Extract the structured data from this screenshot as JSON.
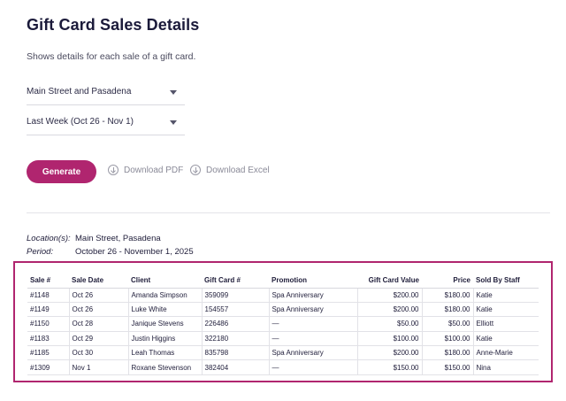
{
  "header": {
    "title": "Gift Card Sales Details",
    "subtitle": "Shows details for each sale of a gift card."
  },
  "filters": {
    "location_value": "Main Street and Pasadena",
    "period_value": "Last Week (Oct 26 - Nov 1)"
  },
  "actions": {
    "generate_label": "Generate",
    "download_pdf_label": "Download PDF",
    "download_excel_label": "Download Excel"
  },
  "report_meta": {
    "location_label": "Location(s):",
    "location_value": "Main Street, Pasadena",
    "period_label": "Period:",
    "period_value": "October 26 - November 1, 2025"
  },
  "table": {
    "columns": [
      "Sale #",
      "Sale Date",
      "Client",
      "Gift Card #",
      "Promotion",
      "Gift Card Value",
      "Price",
      "Sold By Staff"
    ],
    "rows": [
      [
        "#1148",
        "Oct 26",
        "Amanda Simpson",
        "359099",
        "Spa Anniversary",
        "$200.00",
        "$180.00",
        "Katie"
      ],
      [
        "#1149",
        "Oct 26",
        "Luke White",
        "154557",
        "Spa Anniversary",
        "$200.00",
        "$180.00",
        "Katie"
      ],
      [
        "#1150",
        "Oct 28",
        "Janique Stevens",
        "226486",
        "—",
        "$50.00",
        "$50.00",
        "Elliott"
      ],
      [
        "#1183",
        "Oct 29",
        "Justin Higgins",
        "322180",
        "—",
        "$100.00",
        "$100.00",
        "Katie"
      ],
      [
        "#1185",
        "Oct 30",
        "Leah Thomas",
        "835798",
        "Spa Anniversary",
        "$200.00",
        "$180.00",
        "Anne-Marie"
      ],
      [
        "#1309",
        "Nov 1",
        "Roxane Stevenson",
        "382404",
        "—",
        "$150.00",
        "$150.00",
        "Nina"
      ]
    ]
  },
  "colors": {
    "accent": "#b0256f",
    "title": "#1b1a3a"
  }
}
